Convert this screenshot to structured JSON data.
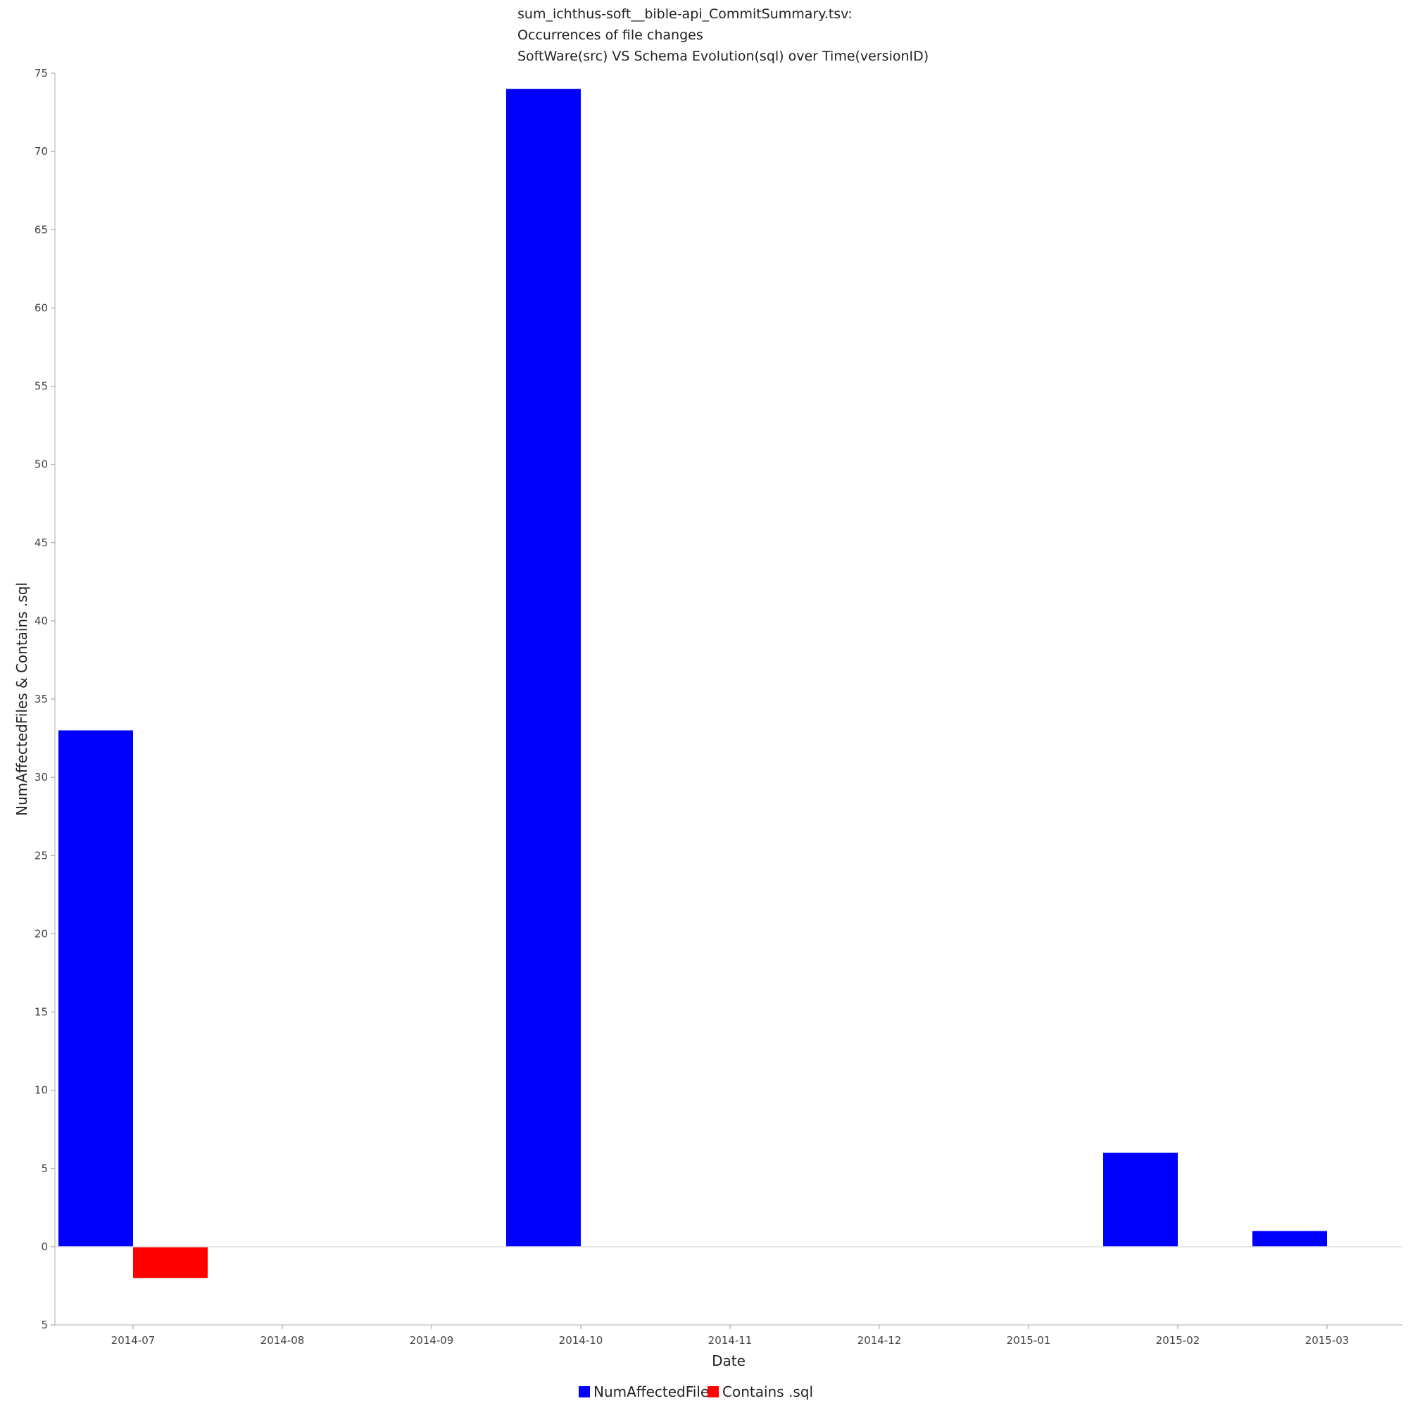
{
  "chart_data": {
    "type": "bar",
    "title_lines": [
      "sum_ichthus-soft__bible-api_CommitSummary.tsv:",
      "Occurrences of file changes",
      "SoftWare(src) VS Schema Evolution(sql) over Time(versionID)"
    ],
    "xlabel": "Date",
    "ylabel": "NumAffectedFiles & Contains .sql",
    "ylim": [
      -5,
      75
    ],
    "y_ticks": [
      75,
      70,
      65,
      60,
      55,
      50,
      45,
      40,
      35,
      30,
      25,
      20,
      15,
      10,
      5,
      0,
      -5
    ],
    "y_tick_labels": [
      "75",
      "70",
      "65",
      "60",
      "55",
      "50",
      "45",
      "40",
      "35",
      "30",
      "25",
      "20",
      "15",
      "10",
      "5",
      "0",
      "5"
    ],
    "x_tick_labels": [
      "2014-07",
      "2014-08",
      "2014-09",
      "2014-10",
      "2014-11",
      "2014-12",
      "2015-01",
      "2015-02",
      "2015-03"
    ],
    "series": [
      {
        "name": "NumAffectedFiles",
        "color": "#0000ff",
        "points": [
          {
            "start": "2014-06-16",
            "end": "2014-07-01",
            "value": 33
          },
          {
            "start": "2014-09-16",
            "end": "2014-10-01",
            "value": 74
          },
          {
            "start": "2015-01-16",
            "end": "2015-02-01",
            "value": 6
          },
          {
            "start": "2015-02-16",
            "end": "2015-03-01",
            "value": 1
          }
        ]
      },
      {
        "name": "Contains .sql",
        "color": "#ff0000",
        "points": [
          {
            "start": "2014-07-01",
            "end": "2014-07-16",
            "value": -2
          }
        ]
      }
    ],
    "grid": false,
    "legend_position": "bottom-center"
  }
}
